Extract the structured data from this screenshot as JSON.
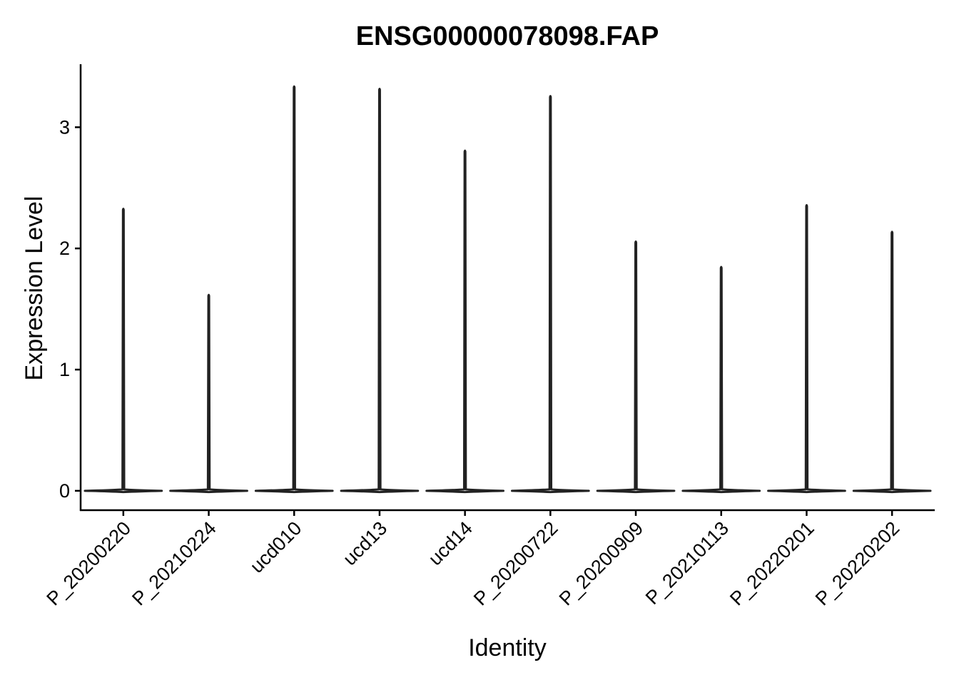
{
  "chart_data": {
    "type": "violin",
    "title": "ENSG00000078098.FAP",
    "xlabel": "Identity",
    "ylabel": "Expression Level",
    "ylim": [
      -0.16,
      3.52
    ],
    "yticks": [
      0,
      1,
      2,
      3
    ],
    "grid": false,
    "legend": "none",
    "categories": [
      "P_20200220",
      "P_20210224",
      "ucd010",
      "ucd13",
      "ucd14",
      "P_20200722",
      "P_20200909",
      "P_20210113",
      "P_20220201",
      "P_20220202"
    ],
    "max_values": [
      2.33,
      1.62,
      3.34,
      3.32,
      2.81,
      3.26,
      2.06,
      1.85,
      2.36,
      2.14
    ],
    "mode_value": 0,
    "violin_color": "#222222"
  }
}
